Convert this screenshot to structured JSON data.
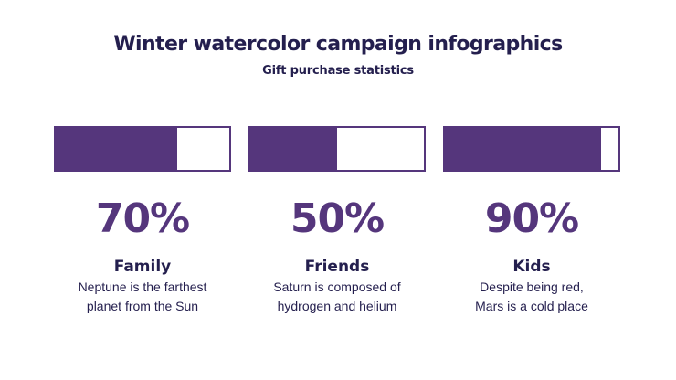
{
  "header": {
    "title": "Winter watercolor campaign infographics",
    "subtitle": "Gift purchase statistics"
  },
  "colors": {
    "accent": "#55367c",
    "text": "#241f4e",
    "background": "#ffffff"
  },
  "stats": [
    {
      "percent": "70%",
      "value": 0.7,
      "label": "Family",
      "desc_line1": "Neptune is the farthest",
      "desc_line2": "planet from the Sun"
    },
    {
      "percent": "50%",
      "value": 0.5,
      "label": "Friends",
      "desc_line1": "Saturn is composed of",
      "desc_line2": "hydrogen and helium"
    },
    {
      "percent": "90%",
      "value": 0.9,
      "label": "Kids",
      "desc_line1": "Despite being red,",
      "desc_line2": "Mars is a cold place"
    }
  ]
}
